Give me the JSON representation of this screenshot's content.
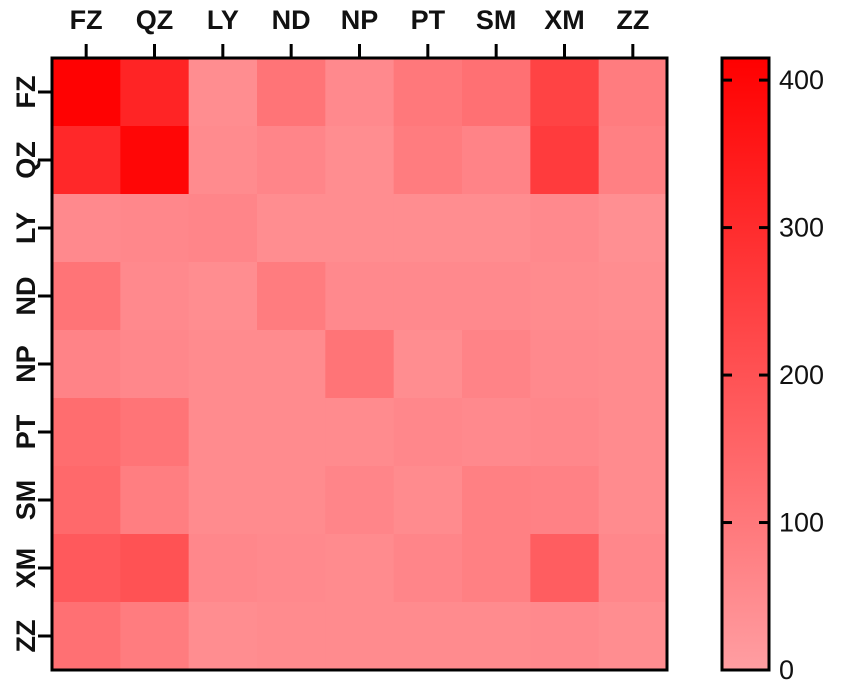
{
  "chart_data": {
    "type": "heatmap",
    "title": "",
    "xlabel": "",
    "ylabel": "",
    "x_categories": [
      "FZ",
      "QZ",
      "LY",
      "ND",
      "NP",
      "PT",
      "SM",
      "XM",
      "ZZ"
    ],
    "y_categories": [
      "FZ",
      "QZ",
      "LY",
      "ND",
      "NP",
      "PT",
      "SM",
      "XM",
      "ZZ"
    ],
    "values": [
      [
        410,
        320,
        45,
        110,
        55,
        100,
        120,
        240,
        90
      ],
      [
        310,
        400,
        50,
        65,
        45,
        90,
        70,
        260,
        80
      ],
      [
        55,
        60,
        65,
        45,
        45,
        45,
        45,
        55,
        40
      ],
      [
        110,
        55,
        45,
        90,
        55,
        55,
        55,
        50,
        45
      ],
      [
        70,
        60,
        50,
        50,
        110,
        45,
        70,
        55,
        50
      ],
      [
        130,
        110,
        50,
        50,
        50,
        60,
        55,
        60,
        50
      ],
      [
        140,
        85,
        50,
        50,
        65,
        50,
        80,
        75,
        50
      ],
      [
        180,
        200,
        60,
        55,
        50,
        65,
        80,
        170,
        60
      ],
      [
        120,
        90,
        45,
        50,
        50,
        50,
        50,
        55,
        45
      ]
    ],
    "colorbar": {
      "min": 0,
      "max": 415,
      "ticks": [
        0,
        100,
        200,
        300,
        400
      ],
      "tick_labels": [
        "0",
        "100",
        "200",
        "300",
        "400"
      ],
      "color_low": "#ff9ea2",
      "color_high": "#ff0000"
    },
    "grid": false,
    "legend": "right"
  }
}
